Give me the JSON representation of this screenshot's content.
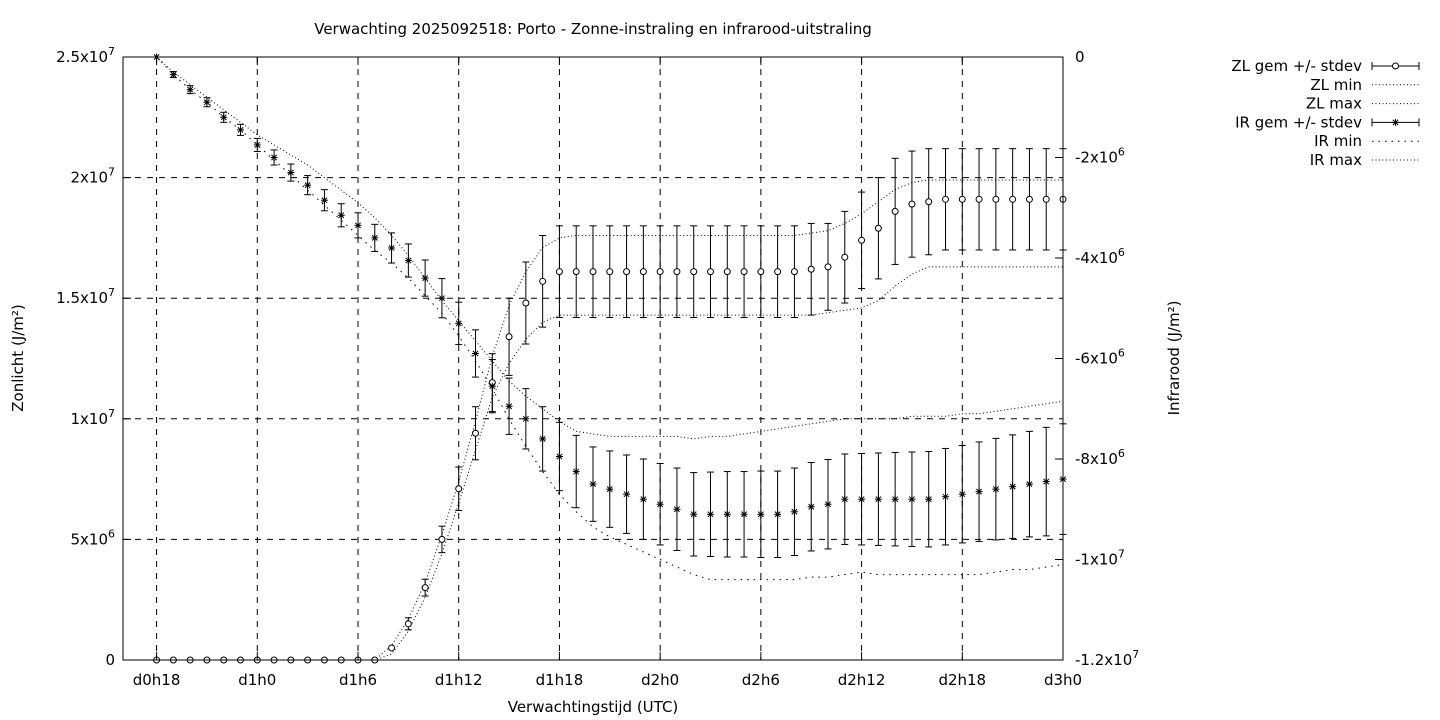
{
  "chart_data": {
    "type": "line",
    "title": "Verwachting 2025092518: Porto - Zonne-instraling en infrarood-uitstraling",
    "xlabel": "Verwachtingstijd (UTC)",
    "ylabel": "Zonlicht (J/m²)",
    "y2label": "Infrarood (J/m²)",
    "x_unit": "hours_from_d0h0",
    "xlim": [
      16,
      72
    ],
    "x_ticks": [
      {
        "x": 18,
        "label": "d0h18"
      },
      {
        "x": 24,
        "label": "d1h0"
      },
      {
        "x": 30,
        "label": "d1h6"
      },
      {
        "x": 36,
        "label": "d1h12"
      },
      {
        "x": 42,
        "label": "d1h18"
      },
      {
        "x": 48,
        "label": "d2h0"
      },
      {
        "x": 54,
        "label": "d2h6"
      },
      {
        "x": 60,
        "label": "d2h12"
      },
      {
        "x": 66,
        "label": "d2h18"
      },
      {
        "x": 72,
        "label": "d3h0"
      }
    ],
    "ylim": [
      0,
      25000000
    ],
    "y_ticks": [
      {
        "v": 0,
        "label": "0"
      },
      {
        "v": 5000000,
        "label": "5x10^6"
      },
      {
        "v": 10000000,
        "label": "1x10^7"
      },
      {
        "v": 15000000,
        "label": "1.5x10^7"
      },
      {
        "v": 20000000,
        "label": "2x10^7"
      },
      {
        "v": 25000000,
        "label": "2.5x10^7"
      }
    ],
    "y2lim": [
      -12000000,
      0
    ],
    "y2_ticks": [
      {
        "v": 0,
        "label": "0"
      },
      {
        "v": -2000000,
        "label": "-2x10^6"
      },
      {
        "v": -4000000,
        "label": "-4x10^6"
      },
      {
        "v": -6000000,
        "label": "-6x10^6"
      },
      {
        "v": -8000000,
        "label": "-8x10^6"
      },
      {
        "v": -10000000,
        "label": "-1x10^7"
      },
      {
        "v": -12000000,
        "label": "-1.2x10^7"
      }
    ],
    "grid": true,
    "legend_position": "outside-top-right",
    "x": [
      18,
      19,
      20,
      21,
      22,
      23,
      24,
      25,
      26,
      27,
      28,
      29,
      30,
      31,
      32,
      33,
      34,
      35,
      36,
      37,
      38,
      39,
      40,
      41,
      42,
      43,
      44,
      45,
      46,
      47,
      48,
      49,
      50,
      51,
      52,
      53,
      54,
      55,
      56,
      57,
      58,
      59,
      60,
      61,
      62,
      63,
      64,
      65,
      66,
      67,
      68,
      69,
      70,
      71,
      72
    ],
    "series": [
      {
        "name": "ZL gem +/- stdev",
        "axis": "y1",
        "style": "points-errorbars",
        "marker": "open-circle",
        "values": [
          0,
          0,
          0,
          0,
          0,
          0,
          0,
          0,
          0,
          0,
          0,
          0,
          0,
          0,
          500000,
          1500000,
          3000000,
          5000000,
          7100000,
          9400000,
          11500000,
          13400000,
          14800000,
          15700000,
          16100000,
          16100000,
          16100000,
          16100000,
          16100000,
          16100000,
          16100000,
          16100000,
          16100000,
          16100000,
          16100000,
          16100000,
          16100000,
          16100000,
          16100000,
          16200000,
          16300000,
          16700000,
          17400000,
          17900000,
          18600000,
          18900000,
          19000000,
          19100000,
          19100000,
          19100000,
          19100000,
          19100000,
          19100000,
          19100000,
          19100000
        ],
        "stdev": [
          0,
          0,
          0,
          0,
          0,
          0,
          0,
          0,
          0,
          0,
          0,
          0,
          0,
          0,
          0,
          250000,
          350000,
          550000,
          900000,
          1100000,
          1200000,
          1600000,
          1700000,
          1900000,
          1900000,
          1900000,
          1900000,
          1900000,
          1900000,
          1900000,
          1900000,
          1900000,
          1900000,
          1900000,
          1900000,
          1900000,
          1900000,
          1900000,
          1900000,
          1900000,
          1800000,
          1900000,
          2000000,
          2100000,
          2200000,
          2200000,
          2200000,
          2100000,
          2100000,
          2100000,
          2100000,
          2100000,
          2100000,
          2100000,
          2100000
        ]
      },
      {
        "name": "ZL min",
        "axis": "y1",
        "style": "dotted",
        "values": [
          0,
          0,
          0,
          0,
          0,
          0,
          0,
          0,
          0,
          0,
          0,
          0,
          0,
          0,
          250000,
          1200000,
          2600000,
          4400000,
          6500000,
          8700000,
          10900000,
          12300000,
          13300000,
          14000000,
          14300000,
          14300000,
          14300000,
          14300000,
          14300000,
          14300000,
          14300000,
          14300000,
          14300000,
          14300000,
          14300000,
          14300000,
          14300000,
          14300000,
          14300000,
          14300000,
          14400000,
          14500000,
          14600000,
          14900000,
          15500000,
          16000000,
          16300000,
          16300000,
          16300000,
          16300000,
          16300000,
          16300000,
          16300000,
          16300000,
          16300000
        ]
      },
      {
        "name": "ZL max",
        "axis": "y1",
        "style": "dotted",
        "values": [
          0,
          0,
          0,
          0,
          0,
          0,
          0,
          0,
          0,
          0,
          0,
          0,
          0,
          0,
          600000,
          1700000,
          3200000,
          5200000,
          7400000,
          9900000,
          12600000,
          14700000,
          16100000,
          17100000,
          17500000,
          17600000,
          17600000,
          17600000,
          17600000,
          17600000,
          17600000,
          17600000,
          17600000,
          17600000,
          17600000,
          17600000,
          17600000,
          17600000,
          17600000,
          17700000,
          17800000,
          18100000,
          18500000,
          19000000,
          19500000,
          19800000,
          19900000,
          19900000,
          19900000,
          19900000,
          19900000,
          19900000,
          19900000,
          19900000,
          19900000
        ]
      },
      {
        "name": "IR gem +/- stdev",
        "axis": "y2",
        "style": "points-errorbars",
        "marker": "star",
        "values": [
          0,
          -350000,
          -650000,
          -900000,
          -1200000,
          -1450000,
          -1750000,
          -2000000,
          -2300000,
          -2550000,
          -2850000,
          -3150000,
          -3350000,
          -3600000,
          -3800000,
          -4050000,
          -4400000,
          -4800000,
          -5300000,
          -5900000,
          -6550000,
          -6950000,
          -7200000,
          -7600000,
          -7950000,
          -8250000,
          -8500000,
          -8600000,
          -8700000,
          -8800000,
          -8900000,
          -9000000,
          -9100000,
          -9100000,
          -9100000,
          -9100000,
          -9100000,
          -9100000,
          -9050000,
          -8950000,
          -8900000,
          -8800000,
          -8800000,
          -8800000,
          -8800000,
          -8800000,
          -8800000,
          -8750000,
          -8700000,
          -8650000,
          -8600000,
          -8550000,
          -8500000,
          -8450000,
          -8400000
        ],
        "stdev": [
          0,
          60000,
          80000,
          90000,
          100000,
          110000,
          130000,
          150000,
          170000,
          190000,
          210000,
          230000,
          250000,
          270000,
          300000,
          330000,
          360000,
          390000,
          420000,
          470000,
          530000,
          560000,
          600000,
          640000,
          680000,
          720000,
          740000,
          760000,
          780000,
          800000,
          810000,
          820000,
          830000,
          840000,
          850000,
          850000,
          860000,
          860000,
          870000,
          880000,
          890000,
          900000,
          910000,
          920000,
          930000,
          940000,
          950000,
          960000,
          970000,
          990000,
          1010000,
          1030000,
          1050000,
          1080000,
          1100000
        ]
      },
      {
        "name": "IR min",
        "axis": "y2",
        "style": "dotted-sparse",
        "values": [
          0,
          -350000,
          -650000,
          -900000,
          -1200000,
          -1450000,
          -1750000,
          -2050000,
          -2350000,
          -2650000,
          -2950000,
          -3250000,
          -3550000,
          -3850000,
          -4100000,
          -4400000,
          -4750000,
          -5100000,
          -5550000,
          -6050000,
          -6600000,
          -7200000,
          -7750000,
          -8250000,
          -8700000,
          -9050000,
          -9350000,
          -9550000,
          -9700000,
          -9850000,
          -10000000,
          -10150000,
          -10300000,
          -10400000,
          -10400000,
          -10400000,
          -10400000,
          -10400000,
          -10400000,
          -10350000,
          -10350000,
          -10300000,
          -10250000,
          -10300000,
          -10300000,
          -10300000,
          -10300000,
          -10300000,
          -10300000,
          -10300000,
          -10250000,
          -10200000,
          -10200000,
          -10150000,
          -10100000
        ]
      },
      {
        "name": "IR max",
        "axis": "y2",
        "style": "dotted",
        "values": [
          0,
          -300000,
          -550000,
          -800000,
          -1050000,
          -1300000,
          -1550000,
          -1750000,
          -1950000,
          -2150000,
          -2400000,
          -2650000,
          -2900000,
          -3200000,
          -3550000,
          -3950000,
          -4400000,
          -4850000,
          -5250000,
          -5650000,
          -6050000,
          -6450000,
          -6750000,
          -7000000,
          -7250000,
          -7450000,
          -7500000,
          -7550000,
          -7550000,
          -7550000,
          -7550000,
          -7550000,
          -7600000,
          -7550000,
          -7550000,
          -7500000,
          -7450000,
          -7400000,
          -7350000,
          -7300000,
          -7250000,
          -7200000,
          -7200000,
          -7200000,
          -7200000,
          -7150000,
          -7150000,
          -7150000,
          -7100000,
          -7100000,
          -7050000,
          -7000000,
          -6950000,
          -6900000,
          -6850000
        ]
      }
    ]
  }
}
